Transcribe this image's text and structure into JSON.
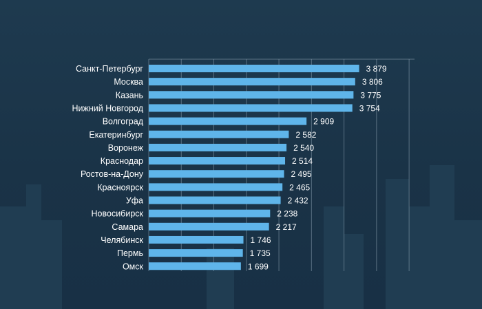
{
  "colors": {
    "background": "#1b3549",
    "bar": "#5fb5ea",
    "label_text": "#ffffff",
    "grid": "#8ea3b3"
  },
  "chart_data": {
    "type": "bar",
    "orientation": "horizontal",
    "title": "",
    "xlabel": "",
    "ylabel": "",
    "grid": true,
    "xlim": [
      0,
      4900
    ],
    "categories": [
      "Санкт-Петербург",
      "Москва",
      "Казань",
      "Нижний Новгород",
      "Волгоград",
      "Екатеринбург",
      "Воронеж",
      "Краснодар",
      "Ростов-на-Дону",
      "Красноярск",
      "Уфа",
      "Новосибирск",
      "Самара",
      "Челябинск",
      "Пермь",
      "Омск"
    ],
    "values": [
      3879,
      3806,
      3775,
      3754,
      2909,
      2582,
      2540,
      2514,
      2495,
      2465,
      2432,
      2238,
      2217,
      1746,
      1735,
      1699
    ],
    "value_labels": [
      "3 879",
      "3 806",
      "3 775",
      "3 754",
      "2 909",
      "2 582",
      "2 540",
      "2 514",
      "2 495",
      "2 465",
      "2 432",
      "2 238",
      "2 217",
      "1 746",
      "1 735",
      "1 699"
    ]
  }
}
